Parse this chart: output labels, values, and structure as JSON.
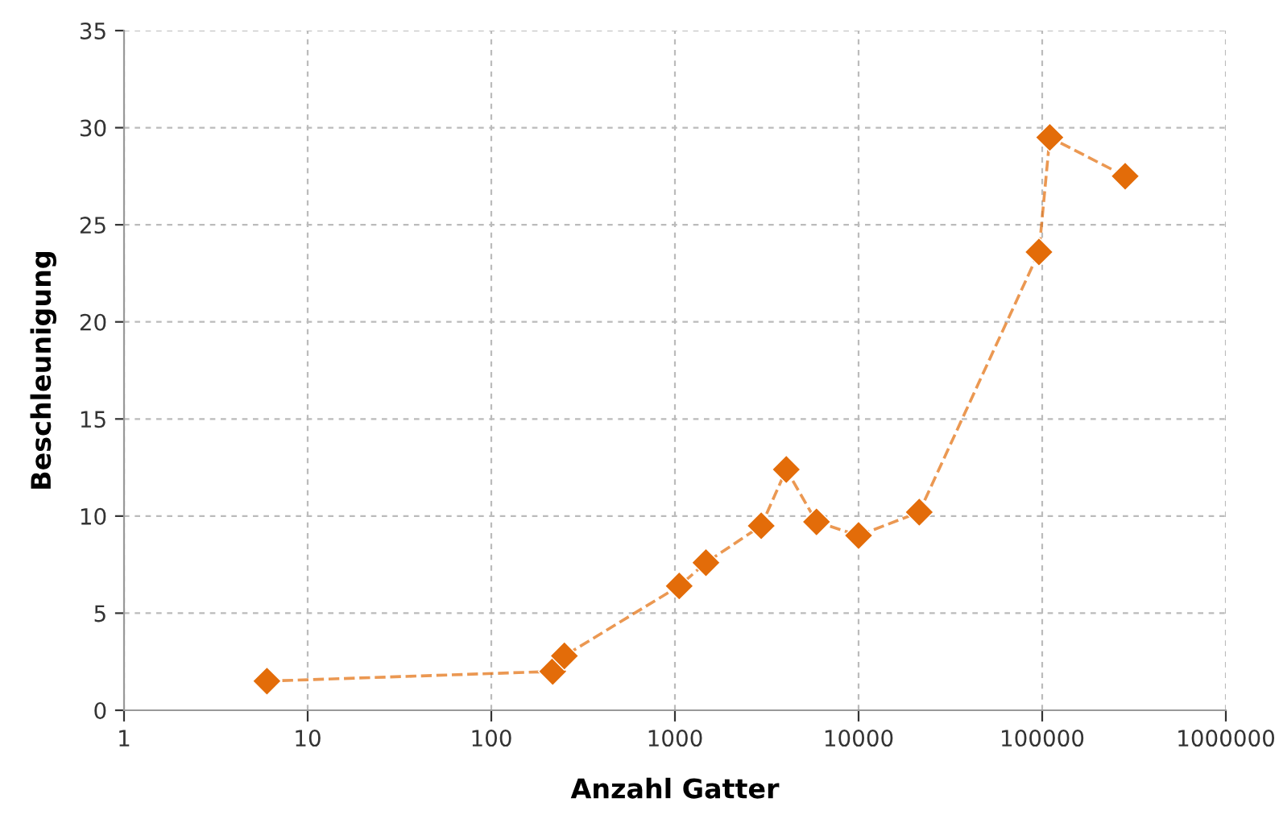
{
  "chart_data": {
    "type": "line",
    "xlabel": "Anzahl Gatter",
    "ylabel": "Beschleunigung",
    "log": "x",
    "x": [
      6,
      216,
      250,
      1055,
      1475,
      2950,
      4040,
      5900,
      10000,
      21400,
      96000,
      110000,
      283000
    ],
    "series": [
      {
        "color": "#e36c09",
        "values": [
          1.5,
          2.0,
          2.8,
          6.4,
          7.6,
          9.5,
          12.4,
          9.7,
          9.0,
          10.2,
          23.6,
          29.5,
          27.5
        ]
      }
    ],
    "xlim": [
      1,
      1000000
    ],
    "xticks": [
      1,
      10,
      100,
      1000,
      10000,
      100000,
      1000000
    ],
    "ylim": [
      0,
      35
    ],
    "yticks": [
      0,
      5,
      10,
      15,
      20,
      25,
      30,
      35
    ],
    "grid": true,
    "marker": "diamond",
    "line_style": "dashed",
    "legend": false
  }
}
